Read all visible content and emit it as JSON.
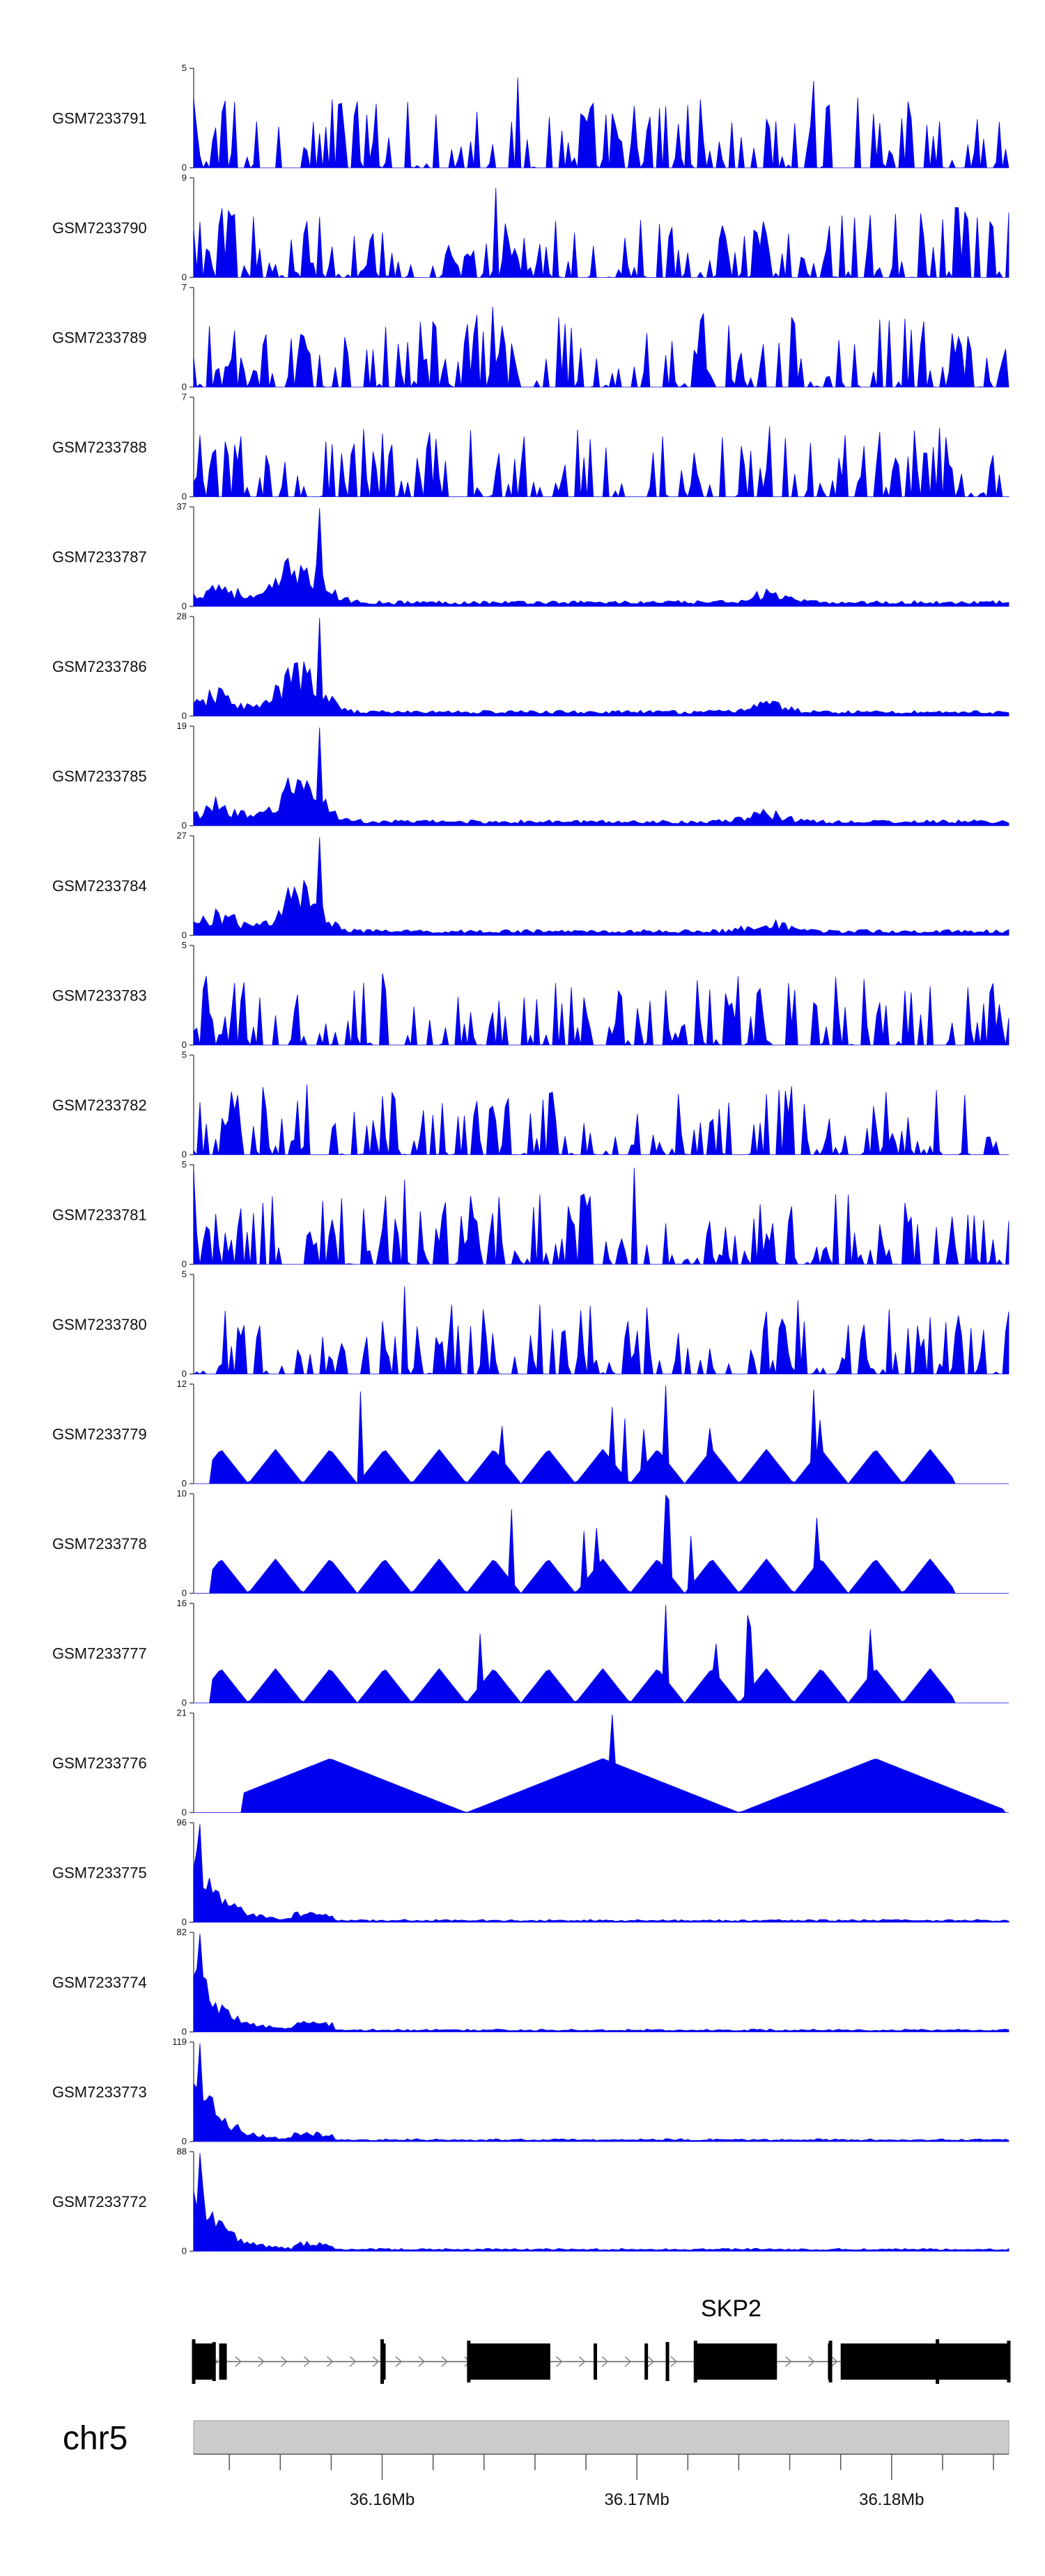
{
  "chart_data": {
    "type": "area",
    "title": "",
    "chromosome": "chr5",
    "x_range_bp": [
      36152600,
      36184600
    ],
    "x_ticks": [
      {
        "bp": 36160000,
        "label": "36.16Mb"
      },
      {
        "bp": 36170000,
        "label": "36.17Mb"
      },
      {
        "bp": 36180000,
        "label": "36.18Mb"
      }
    ],
    "minor_tick_interval_bp": 2000,
    "series_color": "#0000ee",
    "tracks": [
      {
        "name": "GSM7233791",
        "ymax": 5,
        "pattern": "sparse"
      },
      {
        "name": "GSM7233790",
        "ymax": 9,
        "pattern": "sparse"
      },
      {
        "name": "GSM7233789",
        "ymax": 7,
        "pattern": "sparse"
      },
      {
        "name": "GSM7233788",
        "ymax": 7,
        "pattern": "sparse"
      },
      {
        "name": "GSM7233787",
        "ymax": 37,
        "pattern": "peak_left"
      },
      {
        "name": "GSM7233786",
        "ymax": 28,
        "pattern": "peak_left"
      },
      {
        "name": "GSM7233785",
        "ymax": 19,
        "pattern": "peak_left"
      },
      {
        "name": "GSM7233784",
        "ymax": 27,
        "pattern": "peak_left"
      },
      {
        "name": "GSM7233783",
        "ymax": 5,
        "pattern": "sparse"
      },
      {
        "name": "GSM7233782",
        "ymax": 5,
        "pattern": "sparse"
      },
      {
        "name": "GSM7233781",
        "ymax": 5,
        "pattern": "sparse"
      },
      {
        "name": "GSM7233780",
        "ymax": 5,
        "pattern": "sparse"
      },
      {
        "name": "GSM7233779",
        "ymax": 12,
        "pattern": "triangles"
      },
      {
        "name": "GSM7233778",
        "ymax": 10,
        "pattern": "triangles"
      },
      {
        "name": "GSM7233777",
        "ymax": 16,
        "pattern": "triangles"
      },
      {
        "name": "GSM7233776",
        "ymax": 21,
        "pattern": "broad"
      },
      {
        "name": "GSM7233775",
        "ymax": 96,
        "pattern": "start_peak"
      },
      {
        "name": "GSM7233774",
        "ymax": 82,
        "pattern": "start_peak"
      },
      {
        "name": "GSM7233773",
        "ymax": 119,
        "pattern": "start_peak"
      },
      {
        "name": "GSM7233772",
        "ymax": 88,
        "pattern": "start_peak"
      }
    ],
    "gene": {
      "name": "SKP2",
      "strand": "+",
      "start_bp": 36152600,
      "end_bp": 36184600,
      "exons_bp": [
        [
          36152600,
          36153400
        ],
        [
          36153600,
          36153900
        ],
        [
          36160000,
          36160100
        ],
        [
          36163400,
          36166600
        ],
        [
          36168300,
          36168400
        ],
        [
          36170300,
          36170400
        ],
        [
          36172300,
          36175500
        ],
        [
          36177500,
          36177600
        ],
        [
          36178000,
          36184600
        ]
      ]
    }
  }
}
